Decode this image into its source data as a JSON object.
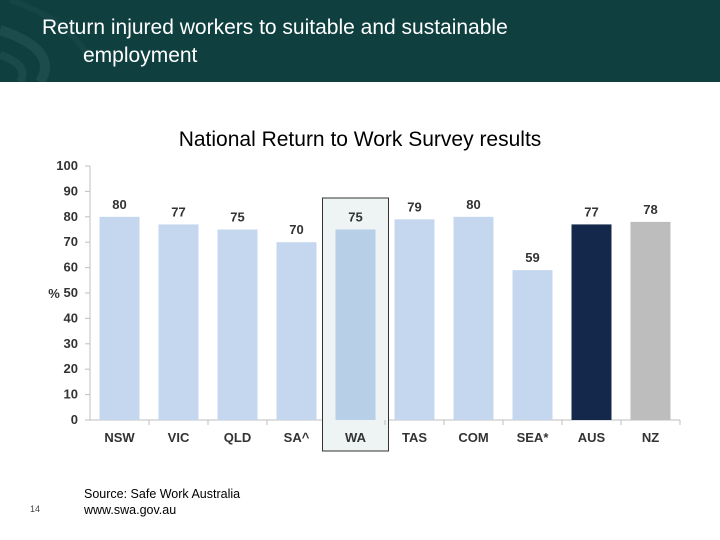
{
  "slide": {
    "title_line1": "Return injured workers to suitable and sustainable",
    "title_line2": "employment",
    "page_number": "14",
    "source_line1": "Source: Safe  Work Australia",
    "source_line2": "www.swa.gov.au",
    "header_color": "#0f3f3f"
  },
  "chart_data": {
    "type": "bar",
    "title": "National Return to Work Survey results",
    "ylabel": "%",
    "xlabel": "",
    "ylim": [
      0,
      100
    ],
    "yticks": [
      0,
      10,
      20,
      30,
      40,
      50,
      60,
      70,
      80,
      90,
      100
    ],
    "categories": [
      "NSW",
      "VIC",
      "QLD",
      "SA^",
      "WA",
      "TAS",
      "COM",
      "SEA*",
      "AUS",
      "NZ"
    ],
    "values": [
      80,
      77,
      75,
      70,
      75,
      79,
      80,
      59,
      77,
      78
    ],
    "highlighted_category": "WA",
    "colors": {
      "default": "#c5d7ef",
      "highlight": "#b8cfe8",
      "AUS": "#13284a",
      "NZ": "#bdbdbd"
    }
  }
}
